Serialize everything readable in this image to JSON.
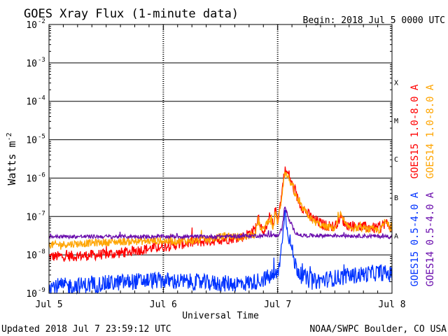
{
  "chart_data": {
    "type": "line",
    "title": "GOES Xray Flux (1-minute data)",
    "begin_label": "Begin:  2018 Jul 5 0000 UTC",
    "xlabel": "Universal Time",
    "ylabel": "Watts m",
    "ylabel_sup": "-2",
    "y_scale": "log",
    "ylim": [
      1e-09,
      0.01
    ],
    "y_ticks": [
      {
        "value": 0.01,
        "base": "10",
        "exp": "-2"
      },
      {
        "value": 0.001,
        "base": "10",
        "exp": "-3"
      },
      {
        "value": 0.0001,
        "base": "10",
        "exp": "-4"
      },
      {
        "value": 1e-05,
        "base": "10",
        "exp": "-5"
      },
      {
        "value": 1e-06,
        "base": "10",
        "exp": "-6"
      },
      {
        "value": 1e-07,
        "base": "10",
        "exp": "-7"
      },
      {
        "value": 1e-08,
        "base": "10",
        "exp": "-8"
      },
      {
        "value": 1e-09,
        "base": "10",
        "exp": "-9"
      }
    ],
    "x_range_days": [
      0,
      3
    ],
    "x_ticks": [
      {
        "day": 0,
        "label": "Jul 5"
      },
      {
        "day": 1,
        "label": "Jul 6"
      },
      {
        "day": 2,
        "label": "Jul 7"
      },
      {
        "day": 3,
        "label": "Jul 8"
      }
    ],
    "flare_classes": [
      {
        "label": "X",
        "value": 0.0001
      },
      {
        "label": "M",
        "value": 1e-05
      },
      {
        "label": "C",
        "value": 1e-06
      },
      {
        "label": "B",
        "value": 1e-07
      },
      {
        "label": "A",
        "value": 1e-08
      }
    ],
    "grid": true,
    "series": [
      {
        "name": "GOES15 1.0-8.0 A",
        "color": "#ff0000",
        "points": [
          [
            0,
            9e-09
          ],
          [
            0.3,
            9.5e-09
          ],
          [
            0.6,
            1.1e-08
          ],
          [
            0.9,
            1.5e-08
          ],
          [
            1.2,
            2e-08
          ],
          [
            1.5,
            2.5e-08
          ],
          [
            1.7,
            3e-08
          ],
          [
            1.8,
            4.5e-08
          ],
          [
            1.83,
            9e-08
          ],
          [
            1.86,
            5e-08
          ],
          [
            1.9,
            4e-08
          ],
          [
            1.93,
            1e-07
          ],
          [
            1.96,
            6e-08
          ],
          [
            1.98,
            1.5e-07
          ],
          [
            2.0,
            8e-08
          ],
          [
            2.03,
            2.8e-07
          ],
          [
            2.06,
            1.6e-06
          ],
          [
            2.1,
            1.2e-06
          ],
          [
            2.14,
            5e-07
          ],
          [
            2.2,
            2e-07
          ],
          [
            2.3,
            9e-08
          ],
          [
            2.4,
            6e-08
          ],
          [
            2.5,
            5.5e-08
          ],
          [
            2.55,
            1e-07
          ],
          [
            2.6,
            6e-08
          ],
          [
            2.7,
            5.5e-08
          ],
          [
            2.85,
            5e-08
          ],
          [
            2.9,
            5e-08
          ],
          [
            2.94,
            7e-08
          ],
          [
            3.0,
            5e-08
          ]
        ]
      },
      {
        "name": "GOES14 1.0-8.0 A",
        "color": "#ffa500",
        "points": [
          [
            0,
            1.8e-08
          ],
          [
            0.3,
            2e-08
          ],
          [
            0.6,
            2.2e-08
          ],
          [
            0.9,
            2.3e-08
          ],
          [
            1.2,
            2.3e-08
          ],
          [
            1.4,
            2.5e-08
          ],
          [
            1.55,
            3.2e-08
          ],
          [
            1.7,
            2.8e-08
          ],
          [
            1.8,
            3.5e-08
          ],
          [
            1.83,
            8e-08
          ],
          [
            1.86,
            4e-08
          ],
          [
            1.93,
            9e-08
          ],
          [
            1.96,
            5e-08
          ],
          [
            1.98,
            1.2e-07
          ],
          [
            2.0,
            7e-08
          ],
          [
            2.03,
            2.5e-07
          ],
          [
            2.06,
            1.4e-06
          ],
          [
            2.1,
            1e-06
          ],
          [
            2.14,
            4.5e-07
          ],
          [
            2.2,
            1.9e-07
          ],
          [
            2.3,
            8e-08
          ],
          [
            2.4,
            5.5e-08
          ],
          [
            2.5,
            5e-08
          ],
          [
            2.55,
            1.1e-07
          ],
          [
            2.6,
            5.5e-08
          ],
          [
            2.7,
            5e-08
          ],
          [
            2.85,
            4.5e-08
          ],
          [
            2.9,
            4.5e-08
          ],
          [
            2.94,
            7.5e-08
          ],
          [
            3.0,
            4.5e-08
          ]
        ]
      },
      {
        "name": "GOES15 0.5-4.0 A",
        "color": "#0033ff",
        "points": [
          [
            0,
            1.5e-09
          ],
          [
            0.3,
            1.6e-09
          ],
          [
            0.5,
            1.8e-09
          ],
          [
            0.7,
            2e-09
          ],
          [
            0.9,
            2.2e-09
          ],
          [
            1.2,
            2e-09
          ],
          [
            1.5,
            1.8e-09
          ],
          [
            1.7,
            1.8e-09
          ],
          [
            1.8,
            2e-09
          ],
          [
            1.9,
            2.5e-09
          ],
          [
            2.0,
            3e-09
          ],
          [
            2.04,
            2e-08
          ],
          [
            2.06,
            1.5e-07
          ],
          [
            2.1,
            3e-08
          ],
          [
            2.15,
            6e-09
          ],
          [
            2.2,
            3e-09
          ],
          [
            2.3,
            2e-09
          ],
          [
            2.5,
            2.5e-09
          ],
          [
            2.7,
            3e-09
          ],
          [
            2.9,
            3.5e-09
          ],
          [
            3.0,
            3e-09
          ]
        ]
      },
      {
        "name": "GOES14 0.5-4.0 A",
        "color": "#6a0dad",
        "points": [
          [
            0,
            3e-08
          ],
          [
            0.5,
            3e-08
          ],
          [
            1.0,
            3e-08
          ],
          [
            1.4,
            3e-08
          ],
          [
            1.7,
            3.1e-08
          ],
          [
            1.9,
            3.2e-08
          ],
          [
            2.0,
            3.2e-08
          ],
          [
            2.04,
            5e-08
          ],
          [
            2.06,
            1.9e-07
          ],
          [
            2.1,
            8e-08
          ],
          [
            2.15,
            4e-08
          ],
          [
            2.2,
            3.2e-08
          ],
          [
            2.5,
            3.2e-08
          ],
          [
            2.8,
            3.1e-08
          ],
          [
            3.0,
            3e-08
          ]
        ]
      }
    ]
  },
  "footer": {
    "updated": "Updated 2018 Jul  7 23:59:12 UTC",
    "credit": "NOAA/SWPC Boulder, CO USA"
  }
}
